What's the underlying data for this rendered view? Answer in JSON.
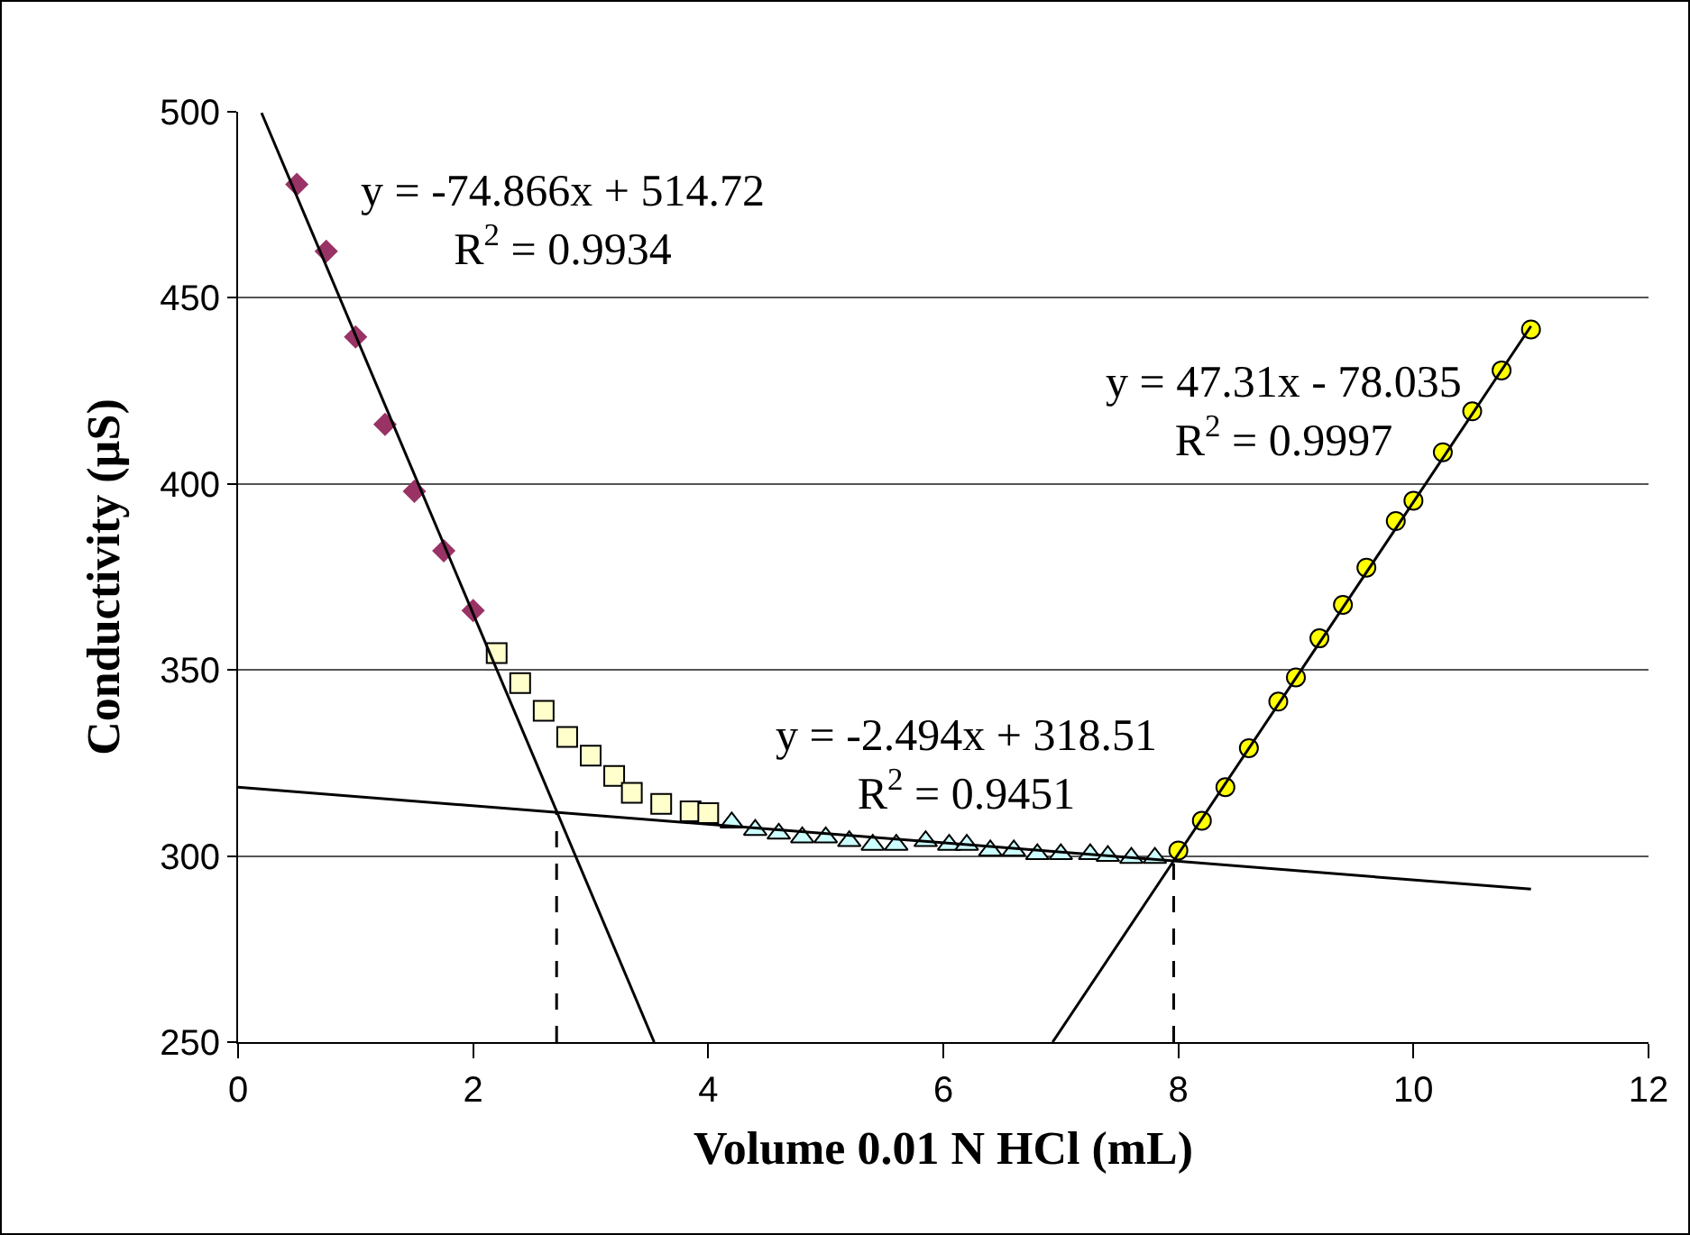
{
  "chart_data": {
    "type": "scatter",
    "xlabel": "Volume 0.01 N HCl (mL)",
    "ylabel": "Conductivity (µS)",
    "xlim": [
      0,
      12
    ],
    "xticks": [
      0,
      2,
      4,
      6,
      8,
      10,
      12
    ],
    "ylim": [
      250,
      500
    ],
    "yticks": [
      250,
      300,
      350,
      400,
      450,
      500
    ],
    "grid": "y",
    "series": [
      {
        "type": "scatter",
        "marker": "diamond",
        "color": "#993366",
        "x": [
          0.5,
          0.75,
          1.0,
          1.25,
          1.5,
          1.75,
          2.0
        ],
        "values": [
          480.5,
          462.5,
          439.5,
          416,
          398,
          382,
          366
        ]
      },
      {
        "type": "scatter",
        "marker": "square",
        "color": "#ffffcc",
        "x": [
          2.2,
          2.4,
          2.6,
          2.8,
          3.0,
          3.2,
          3.35,
          3.6,
          3.85,
          4.0
        ],
        "values": [
          354.5,
          346.5,
          339,
          332,
          327,
          321.5,
          317,
          314,
          312,
          311.5
        ]
      },
      {
        "type": "scatter",
        "marker": "triangle",
        "color": "#ccffff",
        "x": [
          4.2,
          4.4,
          4.6,
          4.8,
          5.0,
          5.2,
          5.4,
          5.6,
          5.85,
          6.05,
          6.2,
          6.4,
          6.6,
          6.8,
          7.0,
          7.25,
          7.4,
          7.6,
          7.8
        ],
        "values": [
          309,
          307,
          306,
          305,
          305,
          304,
          303,
          303,
          304,
          303,
          303,
          301.5,
          301.5,
          300.5,
          300.5,
          300.5,
          300,
          299.5,
          299.5
        ]
      },
      {
        "type": "scatter",
        "marker": "circle",
        "color": "#ffff00",
        "x": [
          8.0,
          8.2,
          8.4,
          8.6,
          8.85,
          9.0,
          9.2,
          9.4,
          9.6,
          9.85,
          10.0,
          10.25,
          10.5,
          10.75,
          11.0
        ],
        "values": [
          301.5,
          309.5,
          318.5,
          329,
          341.5,
          348,
          358.5,
          367.5,
          377.5,
          390,
          395.5,
          408.5,
          419.5,
          430.5,
          441.5
        ]
      },
      {
        "type": "line",
        "marker": "none",
        "line_style": "solid",
        "color": "#000000",
        "x": [
          0.2,
          3.54
        ],
        "values": [
          499.7,
          250
        ]
      },
      {
        "type": "line",
        "marker": "none",
        "line_style": "solid",
        "color": "#000000",
        "x": [
          0,
          11
        ],
        "values": [
          318.5,
          291.1
        ]
      },
      {
        "type": "line",
        "marker": "none",
        "line_style": "solid",
        "color": "#000000",
        "x": [
          6.93,
          11.0
        ],
        "values": [
          250,
          442.4
        ]
      },
      {
        "type": "line",
        "marker": "none",
        "line_style": "dashed",
        "color": "#000000",
        "x": [
          2.71,
          2.71
        ],
        "values": [
          250,
          311.7
        ]
      },
      {
        "type": "line",
        "marker": "none",
        "line_style": "dashed",
        "color": "#000000",
        "x": [
          7.96,
          7.96
        ],
        "values": [
          250,
          298.7
        ]
      }
    ],
    "annotations": [
      "y = -74.866x + 514.72\nR$^{2}$ = 0.9934",
      "y = 47.31x - 78.035\nR$^{2}$ = 0.9997",
      "y = -2.494x + 318.51\nR$^{2}$ = 0.9451"
    ]
  }
}
